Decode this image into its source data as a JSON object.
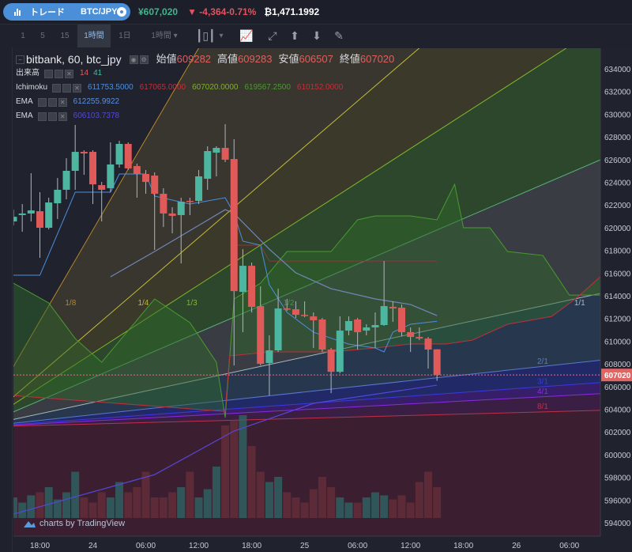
{
  "topbar": {
    "trade_label": "トレード",
    "pair": "BTC/JPY",
    "last_price": "¥607,020",
    "change": "-4,364",
    "change_pct": "-0.71%",
    "volume_24h": "₿1,471.1992",
    "up_color": "#3fb58c",
    "down_color": "#e0535f"
  },
  "toolbar": {
    "intervals": [
      "1",
      "5",
      "15",
      "1時間",
      "1日"
    ],
    "active_interval": "1時間",
    "interval_dropdown": "1時間",
    "icons": [
      "candlestick-icon",
      "chevron-down-icon",
      "indicators-icon",
      "fullscreen-icon",
      "upload-icon",
      "download-icon",
      "eraser-icon",
      "camera-icon"
    ]
  },
  "legend": {
    "title": "bitbank, 60, btc_jpy",
    "open_label": "始値",
    "open": "609282",
    "high_label": "高値",
    "high": "609283",
    "low_label": "安値",
    "low": "606507",
    "close_label": "終値",
    "close": "607020",
    "volume_name": "出来高",
    "volume_vals": [
      "14",
      "41"
    ],
    "ichimoku_name": "Ichimoku",
    "ichimoku_vals": [
      "611753.5000",
      "617065.0000",
      "607020.0000",
      "619567.2500",
      "610152.0000"
    ],
    "ichimoku_colors": [
      "#4a90e2",
      "#c0303a",
      "#7fb030",
      "#4a9a30",
      "#c0303a"
    ],
    "ema1_name": "EMA",
    "ema1_val": "612255.9922",
    "ema1_color": "#5a8fe0",
    "ema2_name": "EMA",
    "ema2_val": "606103.7378",
    "ema2_color": "#5548d8"
  },
  "watermark": "charts by TradingView",
  "chart_data": {
    "type": "candlestick",
    "interval_minutes": 60,
    "first_candle_time": "23 15:00",
    "candles_ohlc": [
      [
        620550,
        621590,
        620200,
        620960
      ],
      [
        621110,
        622080,
        619640,
        621250
      ],
      [
        621250,
        624800,
        620550,
        621520
      ],
      [
        621450,
        623130,
        617340,
        619990
      ],
      [
        619990,
        622640,
        619850,
        622220
      ],
      [
        622150,
        624380,
        620760,
        623340
      ],
      [
        623340,
        626120,
        622500,
        625010
      ],
      [
        625010,
        629050,
        623340,
        626680
      ],
      [
        626680,
        626820,
        624660,
        626540
      ],
      [
        626680,
        626820,
        622080,
        623820
      ],
      [
        623750,
        624030,
        620550,
        623340
      ],
      [
        623480,
        627520,
        623130,
        625570
      ],
      [
        625570,
        627660,
        625290,
        627380
      ],
      [
        627380,
        627520,
        625080,
        625220
      ],
      [
        625430,
        625640,
        622640,
        624730
      ],
      [
        624730,
        625080,
        622990,
        624030
      ],
      [
        624590,
        624870,
        618040,
        622990
      ],
      [
        622990,
        623480,
        620060,
        621250
      ],
      [
        621250,
        621800,
        619500,
        621040
      ],
      [
        621110,
        622640,
        616850,
        622290
      ],
      [
        622360,
        622640,
        621110,
        622320
      ],
      [
        622360,
        625080,
        622080,
        624520
      ],
      [
        624310,
        627170,
        623340,
        626750
      ],
      [
        626610,
        627170,
        624520,
        627030
      ],
      [
        627030,
        629120,
        625780,
        625990
      ],
      [
        626050,
        627800,
        607860,
        614410
      ],
      [
        614340,
        618110,
        610790,
        616640
      ],
      [
        616640,
        616920,
        612530,
        613020
      ],
      [
        613090,
        614830,
        607860,
        608000
      ],
      [
        608070,
        610510,
        605210,
        609190
      ],
      [
        609190,
        614620,
        609050,
        612880
      ],
      [
        612880,
        613720,
        612670,
        612810
      ],
      [
        612810,
        613510,
        612040,
        612320
      ],
      [
        612320,
        613510,
        612110,
        612250
      ],
      [
        612180,
        612530,
        609400,
        611840
      ],
      [
        611910,
        612040,
        609050,
        609260
      ],
      [
        609260,
        609400,
        605420,
        607300
      ],
      [
        607300,
        612180,
        607160,
        610930
      ],
      [
        610930,
        612180,
        610510,
        611770
      ],
      [
        611910,
        612040,
        609260,
        610790
      ],
      [
        610930,
        611490,
        610510,
        611210
      ],
      [
        611210,
        612530,
        609400,
        611420
      ],
      [
        611420,
        617060,
        611350,
        613090
      ],
      [
        613020,
        613510,
        611700,
        612880
      ],
      [
        612950,
        613230,
        610440,
        610790
      ],
      [
        610790,
        611210,
        609050,
        610370
      ],
      [
        610370,
        611210,
        610090,
        610230
      ],
      [
        610230,
        610370,
        607580,
        609260
      ],
      [
        609282,
        609283,
        606507,
        607020
      ]
    ],
    "volume_relative_pct": [
      20,
      15,
      22,
      25,
      30,
      18,
      25,
      45,
      20,
      15,
      25,
      20,
      35,
      25,
      30,
      45,
      20,
      20,
      25,
      30,
      45,
      20,
      28,
      50,
      90,
      95,
      100,
      70,
      45,
      35,
      40,
      25,
      20,
      15,
      28,
      40,
      30,
      20,
      15,
      15,
      20,
      25,
      22,
      18,
      22,
      15,
      35,
      45,
      30
    ],
    "current_price": 607020,
    "current_price_label": "607020",
    "y_ticks": [
      "634000",
      "632000",
      "630000",
      "628000",
      "626000",
      "624000",
      "622000",
      "620000",
      "618000",
      "616000",
      "614000",
      "612000",
      "610000",
      "608000",
      "606000",
      "604000",
      "602000",
      "600000",
      "598000",
      "596000",
      "594000"
    ],
    "time_axis": [
      {
        "t": "23 18:00",
        "label": "18:00"
      },
      {
        "t": "24 00:00",
        "label": "24"
      },
      {
        "t": "24 06:00",
        "label": "06:00"
      },
      {
        "t": "24 12:00",
        "label": "12:00"
      },
      {
        "t": "24 18:00",
        "label": "18:00"
      },
      {
        "t": "25 00:00",
        "label": "25"
      },
      {
        "t": "25 06:00",
        "label": "06:00"
      },
      {
        "t": "25 12:00",
        "label": "12:00"
      },
      {
        "t": "25 18:00",
        "label": "18:00"
      },
      {
        "t": "26 00:00",
        "label": "26"
      },
      {
        "t": "26 06:00",
        "label": "06:00"
      }
    ],
    "colors": {
      "up": "#4db6a0",
      "down": "#e05a5a",
      "current_price": "#e06565"
    },
    "ema_fast": [
      [
        "24 02:00",
        615670
      ],
      [
        "24 07:00",
        617900
      ],
      [
        "24 12:00",
        620200
      ],
      [
        "24 15:00",
        621590
      ],
      [
        "24 16:00",
        621250
      ],
      [
        "24 20:00",
        618110
      ],
      [
        "24 23:00",
        616020
      ],
      [
        "25 03:00",
        614620
      ],
      [
        "25 08:00",
        613720
      ],
      [
        "25 12:00",
        613230
      ],
      [
        "25 15:00",
        612250
      ]
    ],
    "ema_slow": [
      [
        "23 15:00",
        594760
      ],
      [
        "24 07:00",
        598240
      ],
      [
        "24 16:00",
        602080
      ],
      [
        "25 01:00",
        604520
      ],
      [
        "25 15:00",
        606120
      ]
    ],
    "tenkan": [
      [
        "23 15:00",
        615810
      ],
      [
        "23 18:00",
        615810
      ],
      [
        "23 22:00",
        623130
      ],
      [
        "24 02:00",
        623130
      ],
      [
        "24 03:00",
        624730
      ],
      [
        "24 06:00",
        624730
      ],
      [
        "24 07:00",
        622780
      ],
      [
        "24 11:00",
        622080
      ],
      [
        "24 15:00",
        622640
      ],
      [
        "24 16:00",
        621250
      ],
      [
        "24 17:00",
        618810
      ],
      [
        "24 19:00",
        618460
      ],
      [
        "24 20:00",
        614970
      ],
      [
        "24 22:00",
        612530
      ],
      [
        "25 01:00",
        610790
      ],
      [
        "25 05:00",
        609740
      ],
      [
        "25 08:00",
        609400
      ],
      [
        "25 09:00",
        609050
      ],
      [
        "25 10:00",
        610790
      ],
      [
        "25 12:00",
        611490
      ],
      [
        "25 15:00",
        611750
      ]
    ],
    "kijun": [
      [
        "24 16:00",
        618460
      ],
      [
        "24 19:00",
        618460
      ],
      [
        "24 20:00",
        617060
      ],
      [
        "25 15:00",
        617060
      ]
    ],
    "senkou_a": [
      [
        "23 15:00",
        615110
      ],
      [
        "23 19:00",
        613370
      ],
      [
        "23 22:00",
        610230
      ],
      [
        "24 01:00",
        608140
      ],
      [
        "24 04:00",
        610930
      ],
      [
        "24 07:00",
        613720
      ],
      [
        "24 11:00",
        611630
      ],
      [
        "24 14:00",
        608140
      ],
      [
        "24 15:00",
        603260
      ],
      [
        "24 16:00",
        613720
      ],
      [
        "24 19:00",
        615110
      ],
      [
        "24 22:00",
        617900
      ],
      [
        "25 03:00",
        617900
      ],
      [
        "25 06:00",
        620690
      ],
      [
        "25 08:00",
        621040
      ],
      [
        "25 12:00",
        621040
      ],
      [
        "25 15:00",
        620690
      ],
      [
        "25 17:00",
        623820
      ],
      [
        "25 18:00",
        619990
      ],
      [
        "25 21:00",
        619990
      ],
      [
        "25 23:00",
        617900
      ],
      [
        "26 03:00",
        617550
      ],
      [
        "26 06:00",
        614060
      ],
      [
        "26 10:00",
        614060
      ]
    ],
    "senkou_b": [
      [
        "23 15:00",
        605200
      ],
      [
        "24 15:00",
        603810
      ],
      [
        "24 15:30",
        608700
      ],
      [
        "24 20:00",
        609050
      ],
      [
        "25 03:00",
        609050
      ],
      [
        "25 08:00",
        609400
      ],
      [
        "25 12:00",
        609750
      ],
      [
        "25 16:00",
        609750
      ],
      [
        "25 19:00",
        610090
      ],
      [
        "25 23:00",
        611490
      ],
      [
        "26 04:00",
        612180
      ],
      [
        "26 07:00",
        613920
      ],
      [
        "26 10:00",
        616020
      ]
    ],
    "gann_fan": {
      "origin_time": "23 11:00",
      "origin_price": 602430,
      "unit_rate_jpy_per_hour": 167,
      "levels": [
        {
          "label": "1/8",
          "mult": 8,
          "color": "#b8862a",
          "fill": "#3a382e"
        },
        {
          "label": "1/4",
          "mult": 4,
          "color": "#c0b83a",
          "fill": "#3d3c2a"
        },
        {
          "label": "1/3",
          "mult": 3,
          "color": "#80b82a",
          "fill": "#2e4a2c"
        },
        {
          "label": "1/2",
          "mult": 2,
          "color": "#5ab07a",
          "fill": "#3b3f45"
        },
        {
          "label": "1/1",
          "mult": 1,
          "color": "#a8b8c0",
          "fill": "#283a50"
        },
        {
          "label": "2/1",
          "mult": 0.5,
          "color": "#5a78d0",
          "fill": "#232a6a"
        },
        {
          "label": "3/1",
          "mult": 0.333,
          "color": "#3a3ae0",
          "fill": "#381f6b"
        },
        {
          "label": "4/1",
          "mult": 0.25,
          "color": "#8a2be2",
          "fill": "#3d1f45"
        },
        {
          "label": "8/1",
          "mult": 0.125,
          "color": "#c0304a",
          "fill": "#3d2030"
        }
      ]
    }
  }
}
